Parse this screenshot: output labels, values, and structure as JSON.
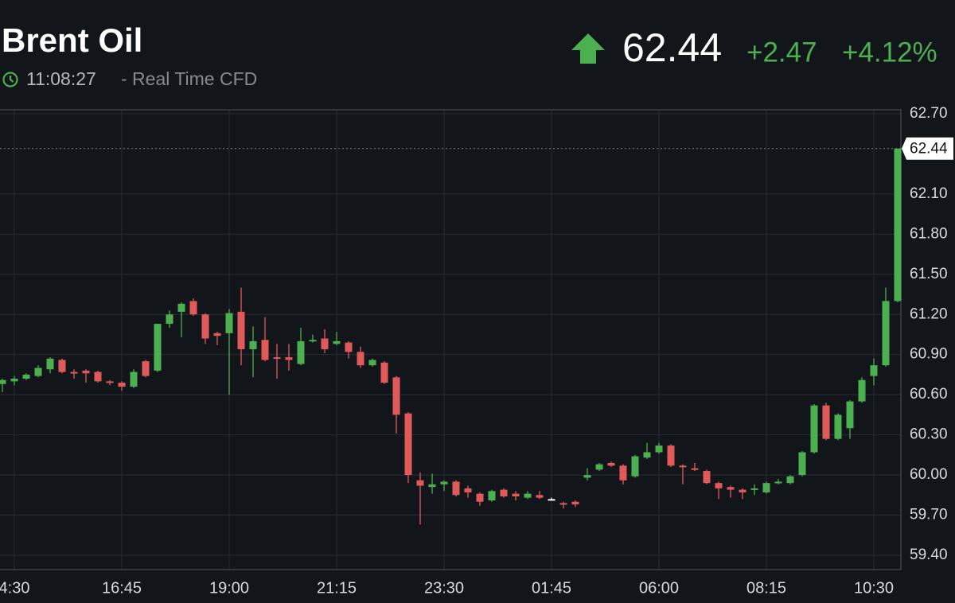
{
  "header": {
    "title": "Brent Oil",
    "time": "11:08:27",
    "source": "- Real Time CFD",
    "change": "+2.47",
    "change_pct": "+4.12%"
  },
  "chart_data": {
    "type": "candlestick",
    "categories": [
      null,
      "4:30",
      null,
      null,
      null,
      null,
      null,
      null,
      null,
      null,
      "16:45",
      null,
      null,
      null,
      null,
      null,
      null,
      null,
      null,
      "19:00",
      null,
      null,
      null,
      null,
      null,
      null,
      null,
      null,
      "21:15",
      null,
      null,
      null,
      null,
      null,
      null,
      null,
      null,
      "23:30",
      null,
      null,
      null,
      null,
      null,
      null,
      null,
      null,
      "01:45",
      null,
      null,
      null,
      null,
      null,
      null,
      null,
      null,
      "06:00",
      null,
      null,
      null,
      null,
      null,
      null,
      null,
      null,
      "08:15",
      null,
      null,
      null,
      null,
      null,
      null,
      null,
      null,
      "10:30",
      null,
      null
    ],
    "open": [
      60.68,
      60.7,
      60.72,
      60.74,
      60.79,
      60.86,
      60.77,
      60.78,
      60.77,
      60.7,
      60.69,
      60.66,
      60.85,
      60.78,
      61.13,
      61.22,
      61.3,
      61.2,
      61.06,
      61.06,
      61.22,
      60.94,
      61.01,
      60.88,
      60.88,
      60.83,
      61.0,
      61.02,
      60.98,
      60.99,
      60.92,
      60.82,
      60.84,
      60.73,
      60.46,
      59.96,
      59.91,
      59.93,
      59.95,
      59.9,
      59.86,
      59.81,
      59.89,
      59.86,
      59.83,
      59.85,
      59.82,
      59.79,
      59.8,
      59.98,
      60.04,
      60.09,
      60.07,
      59.99,
      60.13,
      60.17,
      60.22,
      60.07,
      60.05,
      60.03,
      59.94,
      59.91,
      59.89,
      59.89,
      59.87,
      59.94,
      59.94,
      60.0,
      60.17,
      60.52,
      60.27,
      60.35,
      60.55,
      60.74,
      60.82,
      61.3
    ],
    "high": [
      60.72,
      60.74,
      60.76,
      60.82,
      60.88,
      60.87,
      60.79,
      60.79,
      60.78,
      60.71,
      60.7,
      60.79,
      60.86,
      61.13,
      61.23,
      61.29,
      61.32,
      61.21,
      61.07,
      61.24,
      61.4,
      61.11,
      61.18,
      60.98,
      60.98,
      61.1,
      61.05,
      61.09,
      61.07,
      61.0,
      60.96,
      60.87,
      60.85,
      60.74,
      60.47,
      60.02,
      60.01,
      59.96,
      59.96,
      59.92,
      59.87,
      59.89,
      59.9,
      59.88,
      59.88,
      59.88,
      59.83,
      59.8,
      59.81,
      60.05,
      60.09,
      60.1,
      60.08,
      60.15,
      60.24,
      60.24,
      60.23,
      60.08,
      60.09,
      60.04,
      59.95,
      59.92,
      59.9,
      59.93,
      59.95,
      59.97,
      60.0,
      60.18,
      60.53,
      60.54,
      60.46,
      60.56,
      60.73,
      60.87,
      61.4,
      62.44
    ],
    "low": [
      60.62,
      60.67,
      60.71,
      60.73,
      60.76,
      60.76,
      60.72,
      60.69,
      60.69,
      60.67,
      60.63,
      60.65,
      60.73,
      60.77,
      61.1,
      61.03,
      61.19,
      60.98,
      60.97,
      60.6,
      60.82,
      60.73,
      60.85,
      60.72,
      60.78,
      60.82,
      60.99,
      60.91,
      60.97,
      60.87,
      60.8,
      60.81,
      60.68,
      60.31,
      59.94,
      59.63,
      59.86,
      59.88,
      59.84,
      59.83,
      59.77,
      59.8,
      59.83,
      59.81,
      59.82,
      59.82,
      59.81,
      59.75,
      59.76,
      59.96,
      60.03,
      60.06,
      59.93,
      59.98,
      60.12,
      60.16,
      60.06,
      59.93,
      60.03,
      59.93,
      59.82,
      59.83,
      59.82,
      59.85,
      59.86,
      59.93,
      59.93,
      59.99,
      60.16,
      60.26,
      60.26,
      60.27,
      60.54,
      60.67,
      60.81,
      61.29
    ],
    "close": [
      60.71,
      60.72,
      60.75,
      60.8,
      60.87,
      60.77,
      60.76,
      60.76,
      60.7,
      60.69,
      60.66,
      60.77,
      60.74,
      61.13,
      61.2,
      61.28,
      61.2,
      61.02,
      61.04,
      61.21,
      60.94,
      61.0,
      60.86,
      60.87,
      60.86,
      61.0,
      61.01,
      60.94,
      61.0,
      60.92,
      60.82,
      60.86,
      60.69,
      60.45,
      60.0,
      59.92,
      59.93,
      59.95,
      59.85,
      59.87,
      59.8,
      59.88,
      59.84,
      59.84,
      59.86,
      59.83,
      59.82,
      59.78,
      59.78,
      60.0,
      60.08,
      60.07,
      59.96,
      60.14,
      60.17,
      60.22,
      60.07,
      60.06,
      60.04,
      59.94,
      59.9,
      59.89,
      59.87,
      59.9,
      59.94,
      59.95,
      59.99,
      60.17,
      60.52,
      60.27,
      60.45,
      60.55,
      60.71,
      60.82,
      61.3,
      62.44
    ],
    "current_price": 62.44,
    "up_color": "#4caf50",
    "down_color": "#e05a5a",
    "flat_color": "#ffffff",
    "ylim": [
      59.4,
      62.7
    ],
    "yticks": [
      {
        "value": 59.4,
        "label": "59.40"
      },
      {
        "value": 59.7,
        "label": "59.70"
      },
      {
        "value": 60.0,
        "label": "60.00"
      },
      {
        "value": 60.3,
        "label": "60.30"
      },
      {
        "value": 60.6,
        "label": "60.60"
      },
      {
        "value": 60.9,
        "label": "60.90"
      },
      {
        "value": 61.2,
        "label": "61.20"
      },
      {
        "value": 61.5,
        "label": "61.50"
      },
      {
        "value": 61.8,
        "label": "61.80"
      },
      {
        "value": 62.1,
        "label": "62.10"
      },
      {
        "value": 62.7,
        "label": "62.70"
      }
    ],
    "grid": true
  }
}
